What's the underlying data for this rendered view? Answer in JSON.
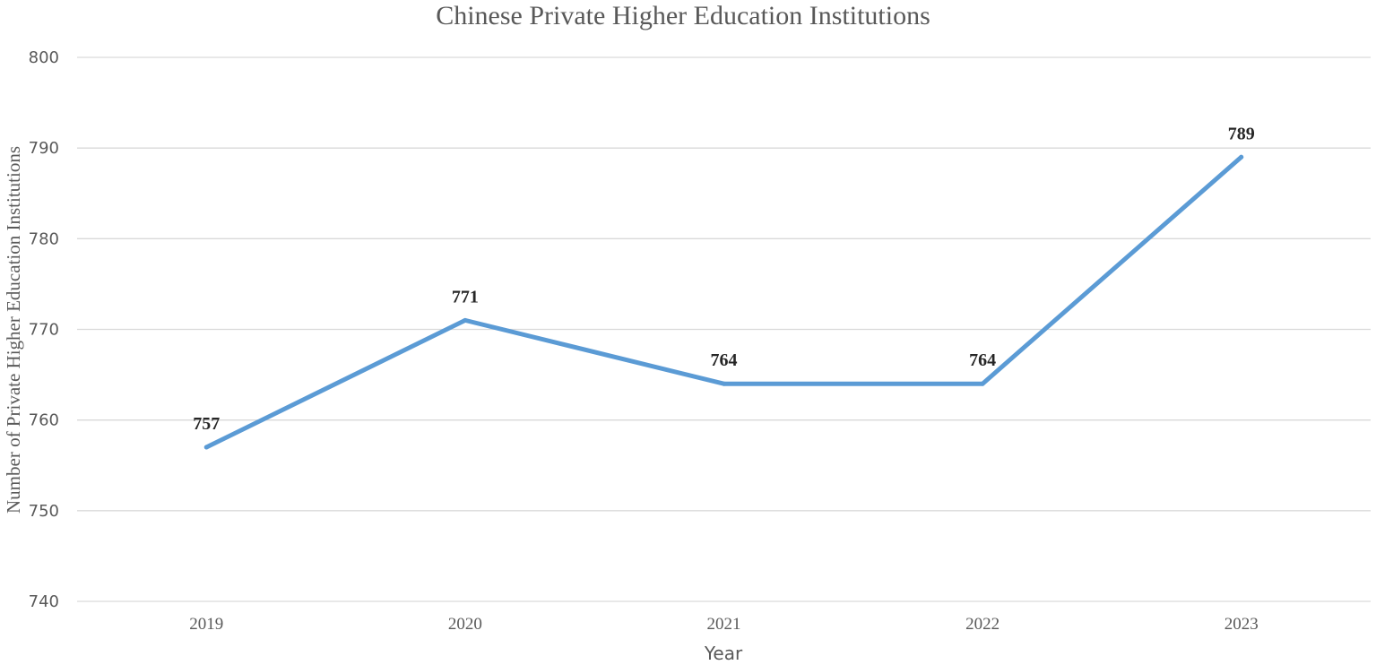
{
  "chart_data": {
    "type": "line",
    "title": "Chinese Private Higher Education Institutions",
    "xlabel": "Year",
    "ylabel": "Number of Private Higher Education Institutions",
    "categories": [
      "2019",
      "2020",
      "2021",
      "2022",
      "2023"
    ],
    "series": [
      {
        "values": [
          757,
          771,
          764,
          764,
          789
        ],
        "color": "#5b9bd5"
      }
    ],
    "data_labels": [
      "757",
      "771",
      "764",
      "764",
      "789"
    ],
    "ylim": [
      740,
      800
    ],
    "yticks": [
      740,
      750,
      760,
      770,
      780,
      790,
      800
    ],
    "ytick_labels": [
      "740",
      "750",
      "760",
      "770",
      "780",
      "790",
      "800"
    ],
    "grid": true,
    "legend": "none",
    "colors": {
      "line": "#5b9bd5",
      "grid": "#d9d9d9",
      "text": "#595959",
      "data_label": "#262626"
    }
  }
}
